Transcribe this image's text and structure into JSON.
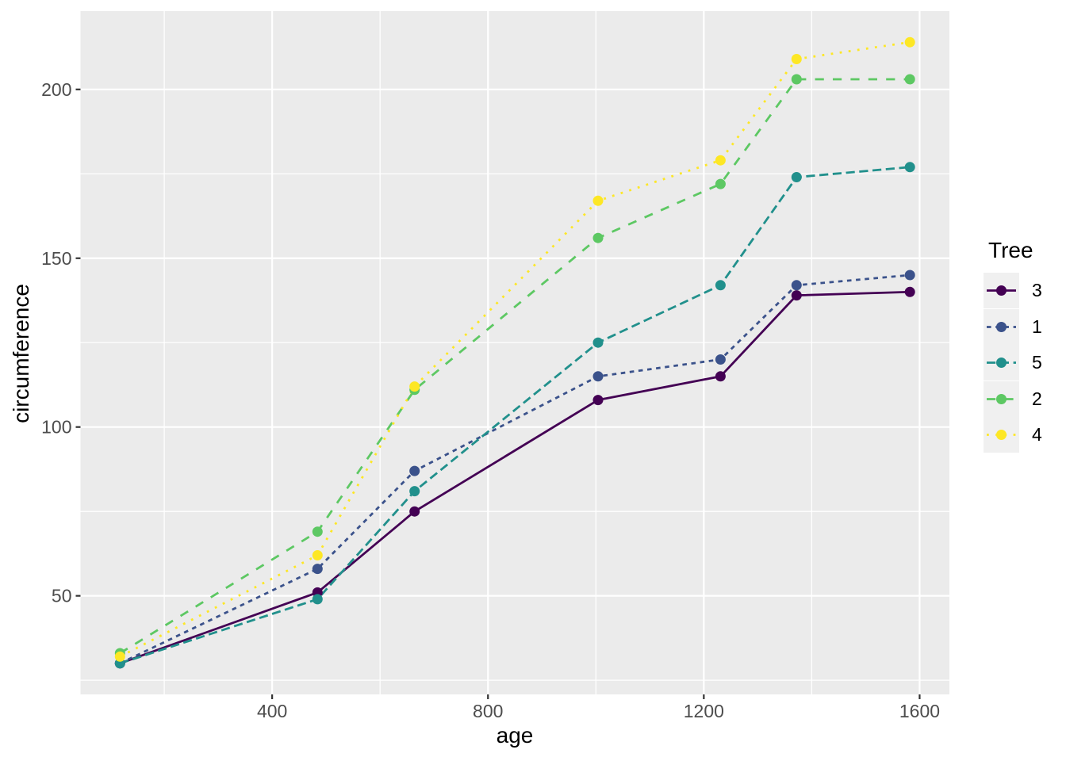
{
  "chart_data": {
    "type": "line",
    "title": "",
    "xlabel": "age",
    "ylabel": "circumference",
    "legend_title": "Tree",
    "legend_position": "right",
    "xlim": [
      44.8,
      1655.2
    ],
    "ylim": [
      20.8,
      223.2
    ],
    "x_ticks": [
      400,
      800,
      1200,
      1600
    ],
    "y_ticks": [
      50,
      100,
      150,
      200
    ],
    "x_minor_ticks": [
      200,
      600,
      1000,
      1400
    ],
    "y_minor_ticks": [
      25,
      75,
      125,
      175
    ],
    "grid": true,
    "x": [
      118,
      484,
      664,
      1004,
      1231,
      1372,
      1582
    ],
    "series": [
      {
        "name": "3",
        "color": "#440154",
        "linetype": "solid",
        "values": [
          30,
          51,
          75,
          108,
          115,
          139,
          140
        ]
      },
      {
        "name": "1",
        "color": "#3B528B",
        "linetype": "22",
        "values": [
          30,
          58,
          87,
          115,
          120,
          142,
          145
        ]
      },
      {
        "name": "5",
        "color": "#21908C",
        "linetype": "42",
        "values": [
          30,
          49,
          81,
          125,
          142,
          174,
          177
        ]
      },
      {
        "name": "2",
        "color": "#5DC863",
        "linetype": "44",
        "values": [
          33,
          69,
          111,
          156,
          172,
          203,
          203
        ]
      },
      {
        "name": "4",
        "color": "#FDE725",
        "linetype": "13",
        "values": [
          32,
          62,
          112,
          167,
          179,
          209,
          214
        ]
      }
    ],
    "colors": {
      "panel_background": "#EBEBEB",
      "grid_lines": "#FFFFFF",
      "tick_marks": "#333333",
      "tick_labels": "#4D4D4D",
      "axis_titles": "#000000",
      "legend_key_background": "#F0F0F0"
    }
  }
}
